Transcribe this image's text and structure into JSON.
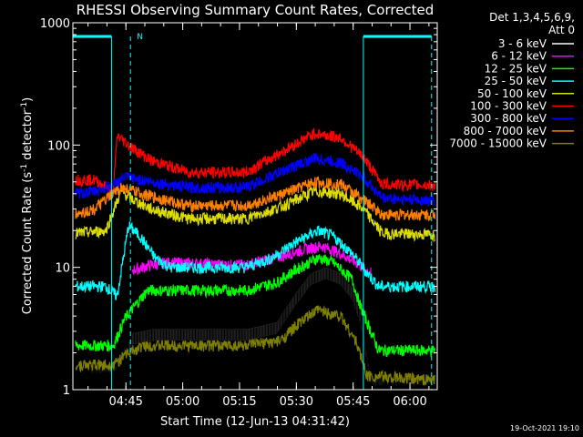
{
  "chart_data": {
    "type": "line",
    "title": "RHESSI Observing Summary Count Rates, Corrected",
    "xlabel": "Start Time (12-Jun-13 04:31:42)",
    "ylabel": "Corrected Count Rate (s",
    "ylabel_sup1": "-1",
    "ylabel_mid": " detector",
    "ylabel_sup2": "-1",
    "ylabel_end": ")",
    "y_scale": "log",
    "ylim": [
      1,
      1000
    ],
    "xlim_minutes": [
      -0.7,
      95.5
    ],
    "x_ticks": [
      {
        "minute": 13.3,
        "label": "04:45"
      },
      {
        "minute": 28.3,
        "label": "05:00"
      },
      {
        "minute": 43.3,
        "label": "05:15"
      },
      {
        "minute": 58.3,
        "label": "05:30"
      },
      {
        "minute": 73.3,
        "label": "05:45"
      },
      {
        "minute": 88.3,
        "label": "06:00"
      }
    ],
    "y_ticks": [
      {
        "value": 1,
        "label": "1"
      },
      {
        "value": 10,
        "label": "10"
      },
      {
        "value": 100,
        "label": "100"
      },
      {
        "value": 1000,
        "label": "1000"
      }
    ],
    "legend": {
      "header1": "Det 1,3,4,5,6,9,",
      "header2": "Att 0",
      "position": "right"
    },
    "series": [
      {
        "name": "3 - 6 keV",
        "color": "#000000",
        "points": [
          [
            4,
            1.5
          ],
          [
            10,
            1.5
          ],
          [
            14,
            2.2
          ],
          [
            15,
            2.6
          ],
          [
            20,
            2.8
          ],
          [
            30,
            2.8
          ],
          [
            45,
            2.8
          ],
          [
            53,
            3.2
          ],
          [
            58,
            5.5
          ],
          [
            62,
            8
          ],
          [
            66,
            9
          ],
          [
            70,
            8
          ],
          [
            73,
            6
          ],
          [
            75,
            4
          ],
          [
            78,
            1.2
          ],
          [
            82,
            1.2
          ],
          [
            95,
            1.2
          ]
        ]
      },
      {
        "name": "6 - 12 keV",
        "color": "#ff00ff",
        "points": [
          [
            15,
            9.5
          ],
          [
            20,
            10.5
          ],
          [
            25,
            11
          ],
          [
            40,
            10.5
          ],
          [
            45,
            10.5
          ],
          [
            55,
            12.5
          ],
          [
            60,
            14
          ],
          [
            65,
            15
          ],
          [
            70,
            13
          ],
          [
            74,
            11
          ],
          [
            78,
            9
          ]
        ]
      },
      {
        "name": "12 - 25 keV",
        "color": "#00ff00",
        "points": [
          [
            0,
            2.3
          ],
          [
            10,
            2.3
          ],
          [
            13,
            3.8
          ],
          [
            16,
            5
          ],
          [
            19,
            6.5
          ],
          [
            25,
            6.5
          ],
          [
            45,
            6.5
          ],
          [
            53,
            7.5
          ],
          [
            58,
            9.5
          ],
          [
            64,
            12
          ],
          [
            68,
            11
          ],
          [
            73,
            8
          ],
          [
            75,
            5
          ],
          [
            78,
            3
          ],
          [
            80,
            2.1
          ],
          [
            95,
            2.1
          ]
        ]
      },
      {
        "name": "25 - 50 keV",
        "color": "#00ffff",
        "points": [
          [
            0,
            7
          ],
          [
            8,
            7
          ],
          [
            11,
            5.8
          ],
          [
            14,
            22
          ],
          [
            17,
            18
          ],
          [
            21,
            12
          ],
          [
            25,
            10
          ],
          [
            40,
            10
          ],
          [
            45,
            10
          ],
          [
            52,
            12
          ],
          [
            58,
            16
          ],
          [
            64,
            20
          ],
          [
            68,
            18
          ],
          [
            73,
            13
          ],
          [
            77,
            9
          ],
          [
            80,
            7
          ],
          [
            95,
            7
          ]
        ]
      },
      {
        "name": "50 - 100 keV",
        "color": "#dddd00",
        "points": [
          [
            0,
            19
          ],
          [
            8,
            20
          ],
          [
            12,
            42
          ],
          [
            15,
            36
          ],
          [
            20,
            30
          ],
          [
            30,
            25
          ],
          [
            45,
            25
          ],
          [
            55,
            32
          ],
          [
            63,
            42
          ],
          [
            70,
            40
          ],
          [
            76,
            30
          ],
          [
            81,
            19
          ],
          [
            95,
            18.5
          ]
        ]
      },
      {
        "name": "100 - 300 keV",
        "color": "#ff0000",
        "points": [
          [
            0,
            52
          ],
          [
            5,
            52
          ],
          [
            10,
            42
          ],
          [
            11,
            120
          ],
          [
            15,
            95
          ],
          [
            20,
            75
          ],
          [
            30,
            60
          ],
          [
            45,
            60
          ],
          [
            55,
            90
          ],
          [
            63,
            125
          ],
          [
            70,
            115
          ],
          [
            76,
            80
          ],
          [
            81,
            48
          ],
          [
            95,
            47
          ]
        ]
      },
      {
        "name": "300 - 800 keV",
        "color": "#0000ff",
        "points": [
          [
            0,
            40
          ],
          [
            5,
            42
          ],
          [
            10,
            47
          ],
          [
            13,
            55
          ],
          [
            20,
            50
          ],
          [
            30,
            45
          ],
          [
            45,
            45
          ],
          [
            55,
            62
          ],
          [
            63,
            78
          ],
          [
            70,
            72
          ],
          [
            76,
            55
          ],
          [
            81,
            37
          ],
          [
            95,
            35
          ]
        ]
      },
      {
        "name": "800 - 7000 keV",
        "color": "#ff8000",
        "points": [
          [
            0,
            27
          ],
          [
            5,
            30
          ],
          [
            12,
            45
          ],
          [
            20,
            38
          ],
          [
            30,
            32
          ],
          [
            45,
            32
          ],
          [
            55,
            40
          ],
          [
            63,
            50
          ],
          [
            70,
            48
          ],
          [
            76,
            36
          ],
          [
            81,
            27
          ],
          [
            95,
            27
          ]
        ]
      },
      {
        "name": "7000 - 15000 keV",
        "color": "#808000",
        "points": [
          [
            0,
            1.6
          ],
          [
            10,
            1.6
          ],
          [
            14,
            2.0
          ],
          [
            18,
            2.3
          ],
          [
            25,
            2.3
          ],
          [
            45,
            2.3
          ],
          [
            54,
            2.5
          ],
          [
            59,
            3.5
          ],
          [
            64,
            4.5
          ],
          [
            70,
            4
          ],
          [
            74,
            2.5
          ],
          [
            77,
            1.3
          ],
          [
            95,
            1.2
          ]
        ]
      }
    ],
    "markers": {
      "text": "N",
      "color": "#00ffff",
      "solid_lines_minute": [
        9.5,
        76
      ],
      "dashed_lines_minute": [
        14.5,
        94
      ]
    }
  },
  "footer": {
    "datestamp": "19-Oct-2021 19:10"
  }
}
